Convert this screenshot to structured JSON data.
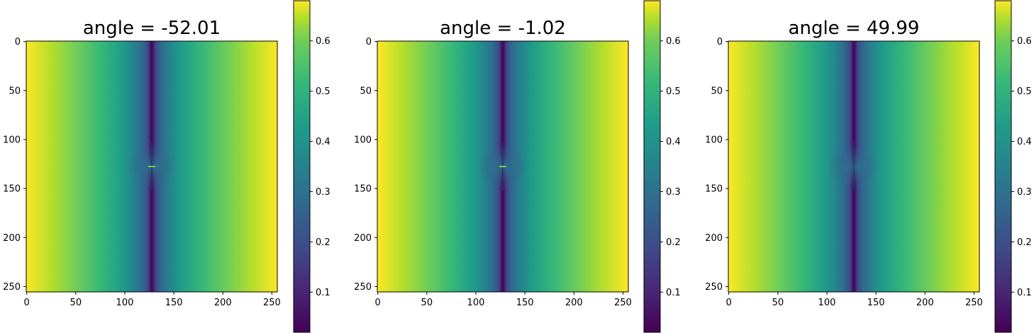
{
  "chart_data": [
    {
      "type": "heatmap",
      "title": "angle = -52.01",
      "x_ticks": [
        0,
        50,
        100,
        150,
        200,
        250
      ],
      "y_ticks": [
        0,
        50,
        100,
        150,
        200,
        250
      ],
      "xlim": [
        0,
        255
      ],
      "ylim": [
        255,
        0
      ],
      "colorbar": {
        "ticks": [
          0.1,
          0.2,
          0.3,
          0.4,
          0.5,
          0.6
        ],
        "range": [
          0.02,
          0.68
        ],
        "colormap": "viridis"
      }
    },
    {
      "type": "heatmap",
      "title": "angle = -1.02",
      "x_ticks": [
        0,
        50,
        100,
        150,
        200,
        250
      ],
      "y_ticks": [
        0,
        50,
        100,
        150,
        200,
        250
      ],
      "xlim": [
        0,
        255
      ],
      "ylim": [
        255,
        0
      ],
      "colorbar": {
        "ticks": [
          0.1,
          0.2,
          0.3,
          0.4,
          0.5,
          0.6
        ],
        "range": [
          0.02,
          0.68
        ],
        "colormap": "viridis"
      }
    },
    {
      "type": "heatmap",
      "title": "angle = 49.99",
      "x_ticks": [
        0,
        50,
        100,
        150,
        200,
        250
      ],
      "y_ticks": [
        0,
        50,
        100,
        150,
        200,
        250
      ],
      "xlim": [
        0,
        255
      ],
      "ylim": [
        255,
        0
      ],
      "colorbar": {
        "ticks": [
          0.1,
          0.2,
          0.3,
          0.4,
          0.5,
          0.6
        ],
        "range": [
          0.02,
          0.68
        ],
        "colormap": "viridis"
      }
    }
  ]
}
